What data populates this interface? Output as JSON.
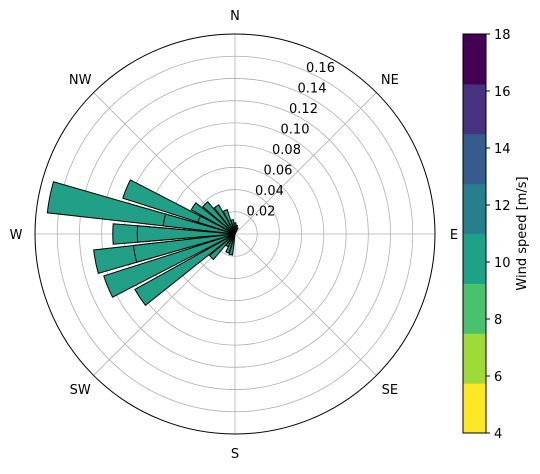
{
  "chart_data": {
    "type": "windrose",
    "directions": [
      "N",
      "NE",
      "E",
      "SE",
      "S",
      "SW",
      "W",
      "NW"
    ],
    "radial_ticks": [
      "0.02",
      "0.04",
      "0.06",
      "0.08",
      "0.10",
      "0.12",
      "0.14",
      "0.16"
    ],
    "radial_max": 0.18,
    "grid": true,
    "bar_color": "#21a087",
    "bar_edge_color": "#000000",
    "sectors": [
      {
        "bearing": 292.5,
        "value": 0.106
      },
      {
        "bearing": 281.25,
        "value": 0.17
      },
      {
        "bearing": 270.0,
        "value": 0.11
      },
      {
        "bearing": 258.75,
        "value": 0.128
      },
      {
        "bearing": 247.5,
        "value": 0.124
      },
      {
        "bearing": 236.25,
        "value": 0.103
      },
      {
        "bearing": 225.0,
        "value": 0.03
      },
      {
        "bearing": 213.75,
        "value": 0.013
      },
      {
        "bearing": 202.5,
        "value": 0.018
      },
      {
        "bearing": 191.25,
        "value": 0.019
      },
      {
        "bearing": 258.75,
        "value": 0.092
      },
      {
        "bearing": 270.0,
        "value": 0.088
      },
      {
        "bearing": 281.25,
        "value": 0.065
      },
      {
        "bearing": 292.5,
        "value": 0.035
      },
      {
        "bearing": 303.75,
        "value": 0.045
      },
      {
        "bearing": 315.0,
        "value": 0.038
      },
      {
        "bearing": 326.25,
        "value": 0.03
      },
      {
        "bearing": 337.5,
        "value": 0.023
      },
      {
        "bearing": 348.75,
        "value": 0.013
      },
      {
        "bearing": 0.0,
        "value": 0.01
      },
      {
        "bearing": 11.25,
        "value": 0.008
      },
      {
        "bearing": 22.5,
        "value": 0.006
      }
    ],
    "colorbar": {
      "label": "Wind speed [m/s]",
      "min": 4,
      "max": 18,
      "ticks": [
        "4",
        "6",
        "8",
        "10",
        "12",
        "14",
        "16",
        "18"
      ],
      "colors": [
        "#fde725",
        "#a0da39",
        "#4ac16d",
        "#1fa187",
        "#277f8e",
        "#365c8d",
        "#46327e",
        "#440154"
      ]
    }
  }
}
